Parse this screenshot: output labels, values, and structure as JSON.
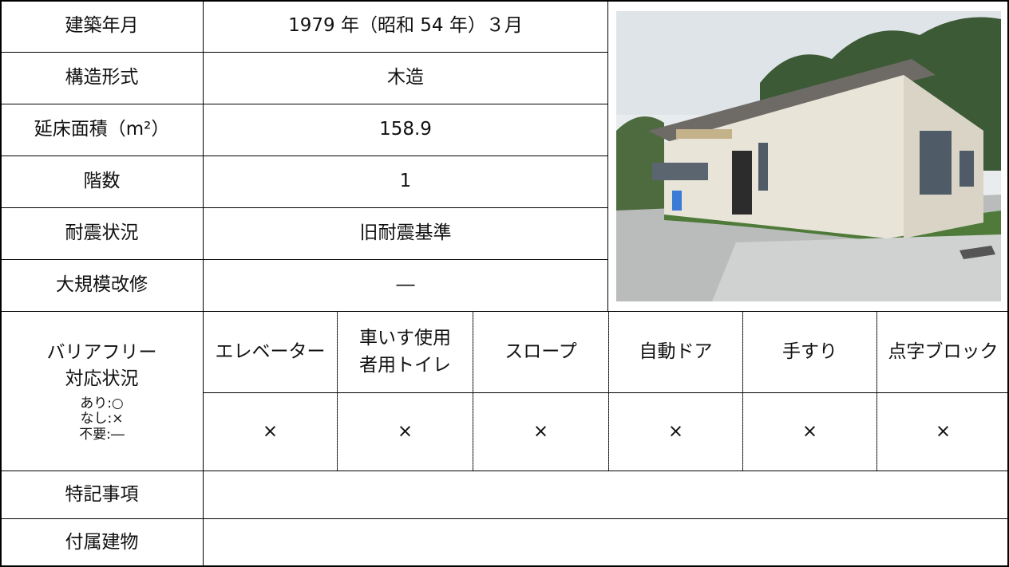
{
  "table": {
    "rows": [
      {
        "label": "建築年月",
        "value": "1979 年（昭和 54 年）３月"
      },
      {
        "label": "構造形式",
        "value": "木造"
      },
      {
        "label": "延床面積（m²）",
        "value": "158.9"
      },
      {
        "label": "階数",
        "value": "1"
      },
      {
        "label": "耐震状況",
        "value": "旧耐震基準"
      },
      {
        "label": "大規模改修",
        "value": "―"
      }
    ],
    "barrier_free": {
      "label": [
        "バリアフリー",
        "対応状況"
      ],
      "legend": [
        "あり:○",
        "なし:×",
        "不要:―"
      ],
      "items": [
        {
          "name": [
            "エレベーター"
          ],
          "status": "×"
        },
        {
          "name": [
            "車いす使用",
            "者用トイレ"
          ],
          "status": "×"
        },
        {
          "name": [
            "スロープ"
          ],
          "status": "×"
        },
        {
          "name": [
            "自動ドア"
          ],
          "status": "×"
        },
        {
          "name": [
            "手すり"
          ],
          "status": "×"
        },
        {
          "name": [
            "点字ブロック"
          ],
          "status": "×"
        }
      ]
    },
    "notes_label": "特記事項",
    "annex_label": "付属建物"
  }
}
